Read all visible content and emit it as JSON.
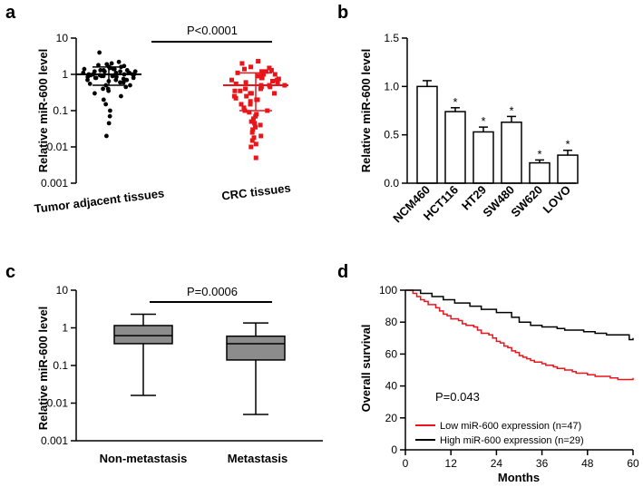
{
  "panel_labels": [
    "a",
    "b",
    "c",
    "d"
  ],
  "chart_data": [
    {
      "panel": "a",
      "type": "scatter",
      "ylabel": "Relative miR-600 level",
      "yscale": "log",
      "ylim": [
        0.001,
        10
      ],
      "yticks": [
        "0.001",
        "0.01",
        "0.1",
        "1",
        "10"
      ],
      "categories": [
        "Tumor adjacent tissues",
        "CRC tissues"
      ],
      "series": [
        {
          "name": "Tumor adjacent tissues",
          "color": "#000000",
          "marker": "circle",
          "mean": 1.0,
          "sd_low": 0.5,
          "sd_high": 1.6,
          "values": [
            4.0,
            2.2,
            2.0,
            1.9,
            1.8,
            1.7,
            1.6,
            1.6,
            1.5,
            1.5,
            1.4,
            1.4,
            1.4,
            1.3,
            1.3,
            1.3,
            1.2,
            1.2,
            1.2,
            1.2,
            1.1,
            1.1,
            1.1,
            1.1,
            1.0,
            1.0,
            1.0,
            1.0,
            1.0,
            0.95,
            0.95,
            0.9,
            0.9,
            0.9,
            0.9,
            0.85,
            0.85,
            0.8,
            0.8,
            0.8,
            0.75,
            0.7,
            0.7,
            0.7,
            0.65,
            0.6,
            0.6,
            0.55,
            0.5,
            0.5,
            0.45,
            0.4,
            0.4,
            0.35,
            0.3,
            0.25,
            0.2,
            0.15,
            0.1,
            0.07,
            0.045,
            0.02
          ]
        },
        {
          "name": "CRC tissues",
          "color": "#e8151b",
          "marker": "square",
          "mean": 0.5,
          "sd_low": 0.1,
          "sd_high": 1.1,
          "values": [
            2.3,
            2.0,
            1.6,
            1.5,
            1.4,
            1.3,
            1.2,
            1.2,
            1.1,
            1.0,
            1.0,
            0.9,
            0.9,
            0.8,
            0.8,
            0.75,
            0.7,
            0.7,
            0.65,
            0.6,
            0.6,
            0.55,
            0.5,
            0.5,
            0.5,
            0.45,
            0.45,
            0.4,
            0.4,
            0.35,
            0.35,
            0.3,
            0.3,
            0.3,
            0.25,
            0.25,
            0.22,
            0.2,
            0.2,
            0.18,
            0.15,
            0.15,
            0.12,
            0.1,
            0.1,
            0.09,
            0.08,
            0.07,
            0.06,
            0.05,
            0.045,
            0.04,
            0.035,
            0.03,
            0.025,
            0.02,
            0.018,
            0.015,
            0.012,
            0.01,
            0.005
          ]
        }
      ],
      "annotation": "P<0.0001"
    },
    {
      "panel": "b",
      "type": "bar",
      "ylabel": "Relative miR-600 level",
      "ylim": [
        0,
        1.5
      ],
      "yticks": [
        "0.0",
        "0.5",
        "1.0",
        "1.5"
      ],
      "categories": [
        "NCM460",
        "HCT116",
        "HT29",
        "SW480",
        "SW620",
        "LOVO"
      ],
      "values": [
        1.0,
        0.74,
        0.53,
        0.63,
        0.21,
        0.29
      ],
      "errors": [
        0.06,
        0.04,
        0.05,
        0.06,
        0.03,
        0.05
      ],
      "significance": [
        "",
        "*",
        "*",
        "*",
        "*",
        "*"
      ]
    },
    {
      "panel": "c",
      "type": "box",
      "ylabel": "Relative miR-600 level",
      "yscale": "log",
      "ylim": [
        0.001,
        10
      ],
      "yticks": [
        "0.001",
        "0.01",
        "0.1",
        "1",
        "10"
      ],
      "categories": [
        "Non-metastasis",
        "Metastasis"
      ],
      "boxes": [
        {
          "min": 0.016,
          "q1": 0.38,
          "median": 0.62,
          "q3": 1.15,
          "max": 2.3
        },
        {
          "min": 0.005,
          "q1": 0.14,
          "median": 0.38,
          "q3": 0.6,
          "max": 1.35
        }
      ],
      "annotation": "P=0.0006",
      "color": "#8c8c8c"
    },
    {
      "panel": "d",
      "type": "line",
      "xlabel": "Months",
      "ylabel": "Overall survival",
      "xlim": [
        0,
        60
      ],
      "ylim": [
        0,
        100
      ],
      "xticks": [
        "0",
        "12",
        "24",
        "36",
        "48",
        "60"
      ],
      "yticks": [
        "0",
        "20",
        "40",
        "60",
        "80",
        "100"
      ],
      "annotation": "P=0.043",
      "series": [
        {
          "name": "Low miR-600 expression (n=47)",
          "color": "#e8151b",
          "x": [
            0,
            2,
            3,
            4,
            5,
            6,
            8,
            9,
            10,
            11,
            12,
            14,
            15,
            16,
            18,
            19,
            20,
            22,
            23,
            24,
            25,
            26,
            27,
            28,
            29,
            30,
            31,
            32,
            33,
            34,
            36,
            37,
            39,
            40,
            42,
            44,
            45,
            46,
            48,
            50,
            52,
            54,
            55,
            56,
            58,
            60
          ],
          "y": [
            100,
            98,
            96,
            94,
            93,
            91,
            89,
            87,
            85,
            84,
            82,
            81,
            79,
            78,
            77,
            75,
            73,
            72,
            70,
            68,
            67,
            65,
            64,
            62,
            61,
            59,
            58,
            57,
            56,
            55,
            54,
            53,
            52,
            51,
            50,
            49,
            48,
            48,
            47,
            46,
            46,
            45,
            45,
            44,
            44,
            45
          ]
        },
        {
          "name": "High miR-600 expression (n=29)",
          "color": "#000000",
          "x": [
            0,
            4,
            7,
            10,
            13,
            17,
            20,
            24,
            28,
            30,
            33,
            36,
            40,
            42,
            47,
            50,
            53,
            56,
            59,
            60
          ],
          "y": [
            100,
            98,
            96,
            94,
            92,
            90,
            88,
            86,
            83,
            80,
            78,
            77,
            76,
            75,
            74,
            73,
            72,
            72,
            69,
            70
          ]
        }
      ]
    }
  ]
}
